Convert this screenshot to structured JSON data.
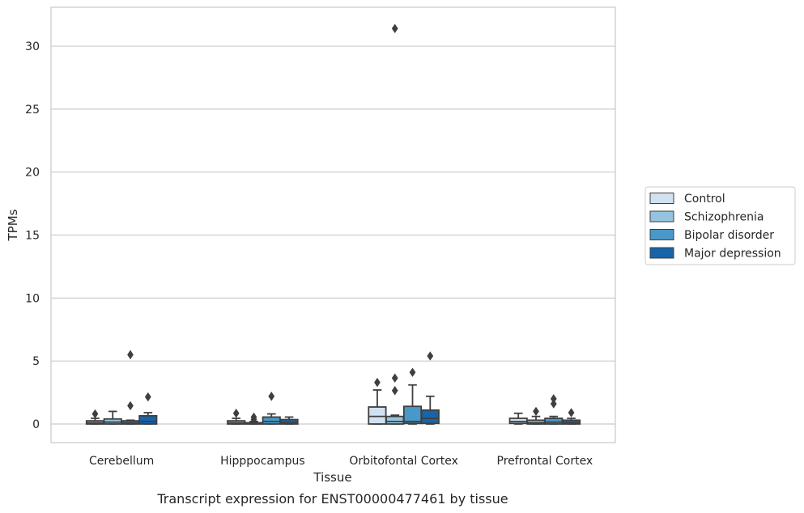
{
  "chart_data": {
    "type": "box",
    "title": "",
    "caption": "Transcript expression for ENST00000477461 by tissue",
    "xlabel": "Tissue",
    "ylabel": "TPMs",
    "ylim": [
      -1.5,
      33
    ],
    "yticks": [
      0,
      5,
      10,
      15,
      20,
      25,
      30
    ],
    "grid": true,
    "legend_position": "right",
    "categories": [
      "Cerebellum",
      "Hipppocampus",
      "Orbitofontal Cortex",
      "Prefrontal Cortex"
    ],
    "series": [
      {
        "name": "Control",
        "color": "#d0e1f2",
        "boxes": [
          {
            "whislo": 0.0,
            "q1": 0.0,
            "med": 0.1,
            "q3": 0.25,
            "whishi": 0.45,
            "fliers": [
              0.8
            ]
          },
          {
            "whislo": 0.0,
            "q1": 0.0,
            "med": 0.1,
            "q3": 0.25,
            "whishi": 0.45,
            "fliers": [
              0.85
            ]
          },
          {
            "whislo": 0.0,
            "q1": 0.0,
            "med": 0.6,
            "q3": 1.35,
            "whishi": 2.7,
            "fliers": [
              3.3
            ]
          },
          {
            "whislo": 0.0,
            "q1": 0.05,
            "med": 0.2,
            "q3": 0.45,
            "whishi": 0.85,
            "fliers": []
          }
        ]
      },
      {
        "name": "Schizophrenia",
        "color": "#94c4df",
        "boxes": [
          {
            "whislo": 0.0,
            "q1": 0.0,
            "med": 0.15,
            "q3": 0.4,
            "whishi": 1.0,
            "fliers": []
          },
          {
            "whislo": 0.0,
            "q1": 0.0,
            "med": 0.05,
            "q3": 0.1,
            "whishi": 0.2,
            "fliers": [
              0.35,
              0.55
            ]
          },
          {
            "whislo": 0.0,
            "q1": 0.0,
            "med": 0.2,
            "q3": 0.6,
            "whishi": 0.7,
            "fliers": [
              2.65,
              3.65,
              31.4
            ]
          },
          {
            "whislo": 0.0,
            "q1": 0.0,
            "med": 0.1,
            "q3": 0.3,
            "whishi": 0.6,
            "fliers": [
              1.0
            ]
          }
        ]
      },
      {
        "name": "Bipolar disorder",
        "color": "#4a98c9",
        "boxes": [
          {
            "whislo": 0.0,
            "q1": 0.0,
            "med": 0.1,
            "q3": 0.25,
            "whishi": 0.3,
            "fliers": [
              1.45,
              5.5
            ]
          },
          {
            "whislo": 0.0,
            "q1": 0.0,
            "med": 0.2,
            "q3": 0.55,
            "whishi": 0.8,
            "fliers": [
              2.2
            ]
          },
          {
            "whislo": 0.0,
            "q1": 0.05,
            "med": 0.2,
            "q3": 1.4,
            "whishi": 3.1,
            "fliers": [
              4.1
            ]
          },
          {
            "whislo": 0.0,
            "q1": 0.0,
            "med": 0.15,
            "q3": 0.45,
            "whishi": 0.6,
            "fliers": [
              1.6,
              2.0
            ]
          }
        ]
      },
      {
        "name": "Major depression",
        "color": "#1764ab",
        "boxes": [
          {
            "whislo": 0.0,
            "q1": 0.0,
            "med": 0.2,
            "q3": 0.65,
            "whishi": 0.9,
            "fliers": [
              2.15
            ]
          },
          {
            "whislo": 0.0,
            "q1": 0.0,
            "med": 0.1,
            "q3": 0.35,
            "whishi": 0.55,
            "fliers": []
          },
          {
            "whislo": 0.0,
            "q1": 0.05,
            "med": 0.45,
            "q3": 1.1,
            "whishi": 2.2,
            "fliers": [
              5.4
            ]
          },
          {
            "whislo": 0.0,
            "q1": 0.0,
            "med": 0.1,
            "q3": 0.3,
            "whishi": 0.45,
            "fliers": [
              0.9
            ]
          }
        ]
      }
    ]
  }
}
